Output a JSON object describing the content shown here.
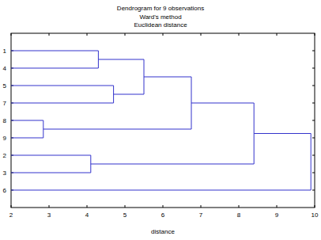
{
  "chart_data": {
    "type": "dendrogram",
    "title": "Dendrogram for 9 observations",
    "subtitle": [
      "Ward's method",
      "Euclidean distance"
    ],
    "x_label": "distance",
    "xlim": [
      2,
      10
    ],
    "xticks": [
      2,
      3,
      4,
      5,
      6,
      7,
      8,
      9,
      10
    ],
    "grid": false,
    "color": "#3333cc",
    "tree": {
      "distance": 9.9,
      "children": [
        {
          "distance": 8.4,
          "children": [
            {
              "distance": 6.75,
              "children": [
                {
                  "distance": 5.5,
                  "children": [
                    {
                      "distance": 4.3,
                      "children": [
                        "1",
                        "4"
                      ]
                    },
                    {
                      "distance": 4.7,
                      "children": [
                        "5",
                        "7"
                      ]
                    }
                  ]
                },
                {
                  "distance": 2.85,
                  "children": [
                    "8",
                    "9"
                  ]
                }
              ]
            },
            {
              "distance": 4.1,
              "children": [
                "2",
                "3"
              ]
            }
          ]
        },
        "6"
      ]
    }
  }
}
